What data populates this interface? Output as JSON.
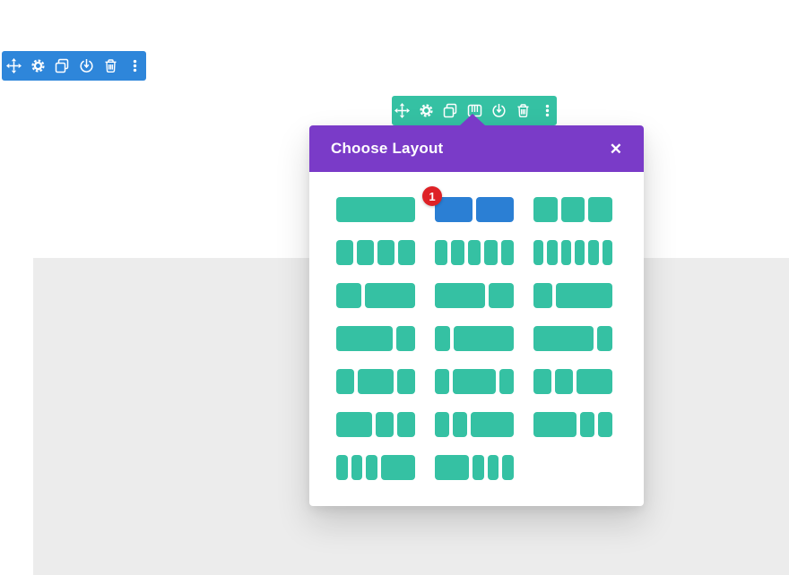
{
  "colors": {
    "section_toolbar_blue": "#2e86da",
    "row_toolbar_teal": "#35c1a3",
    "modal_header_purple": "#7a3bc8",
    "layout_teal": "#35c1a3",
    "layout_selected_blue": "#2b7fd4",
    "badge_red": "#de2126",
    "canvas_gray": "#ececec"
  },
  "section_toolbar": {
    "icons": [
      "move",
      "settings",
      "duplicate",
      "save-to-library",
      "delete",
      "options-menu"
    ]
  },
  "row_toolbar": {
    "icons": [
      "move",
      "settings",
      "duplicate",
      "column-structure",
      "save-to-library",
      "delete",
      "options-menu"
    ]
  },
  "modal": {
    "title": "Choose Layout",
    "close": "✕",
    "layouts": [
      {
        "columns": [
          1
        ]
      },
      {
        "columns": [
          1,
          1
        ],
        "selected": true,
        "badge": "1"
      },
      {
        "columns": [
          1,
          1,
          1
        ]
      },
      {
        "columns": [
          1,
          1,
          1,
          1
        ]
      },
      {
        "columns": [
          1,
          1,
          1,
          1,
          1
        ]
      },
      {
        "columns": [
          1,
          1,
          1,
          1,
          1,
          1
        ]
      },
      {
        "columns": [
          1,
          2
        ]
      },
      {
        "columns": [
          2,
          1
        ]
      },
      {
        "columns": [
          1,
          3
        ]
      },
      {
        "columns": [
          3,
          1
        ]
      },
      {
        "columns": [
          1,
          4
        ]
      },
      {
        "columns": [
          4,
          1
        ]
      },
      {
        "columns": [
          1,
          2,
          1
        ]
      },
      {
        "columns": [
          1,
          3,
          1
        ]
      },
      {
        "columns": [
          1,
          1,
          2
        ]
      },
      {
        "columns": [
          2,
          1,
          1
        ]
      },
      {
        "columns": [
          1,
          1,
          3
        ]
      },
      {
        "columns": [
          3,
          1,
          1
        ]
      },
      {
        "columns": [
          1,
          1,
          1,
          3
        ]
      },
      {
        "columns": [
          3,
          1,
          1,
          1
        ]
      }
    ]
  }
}
